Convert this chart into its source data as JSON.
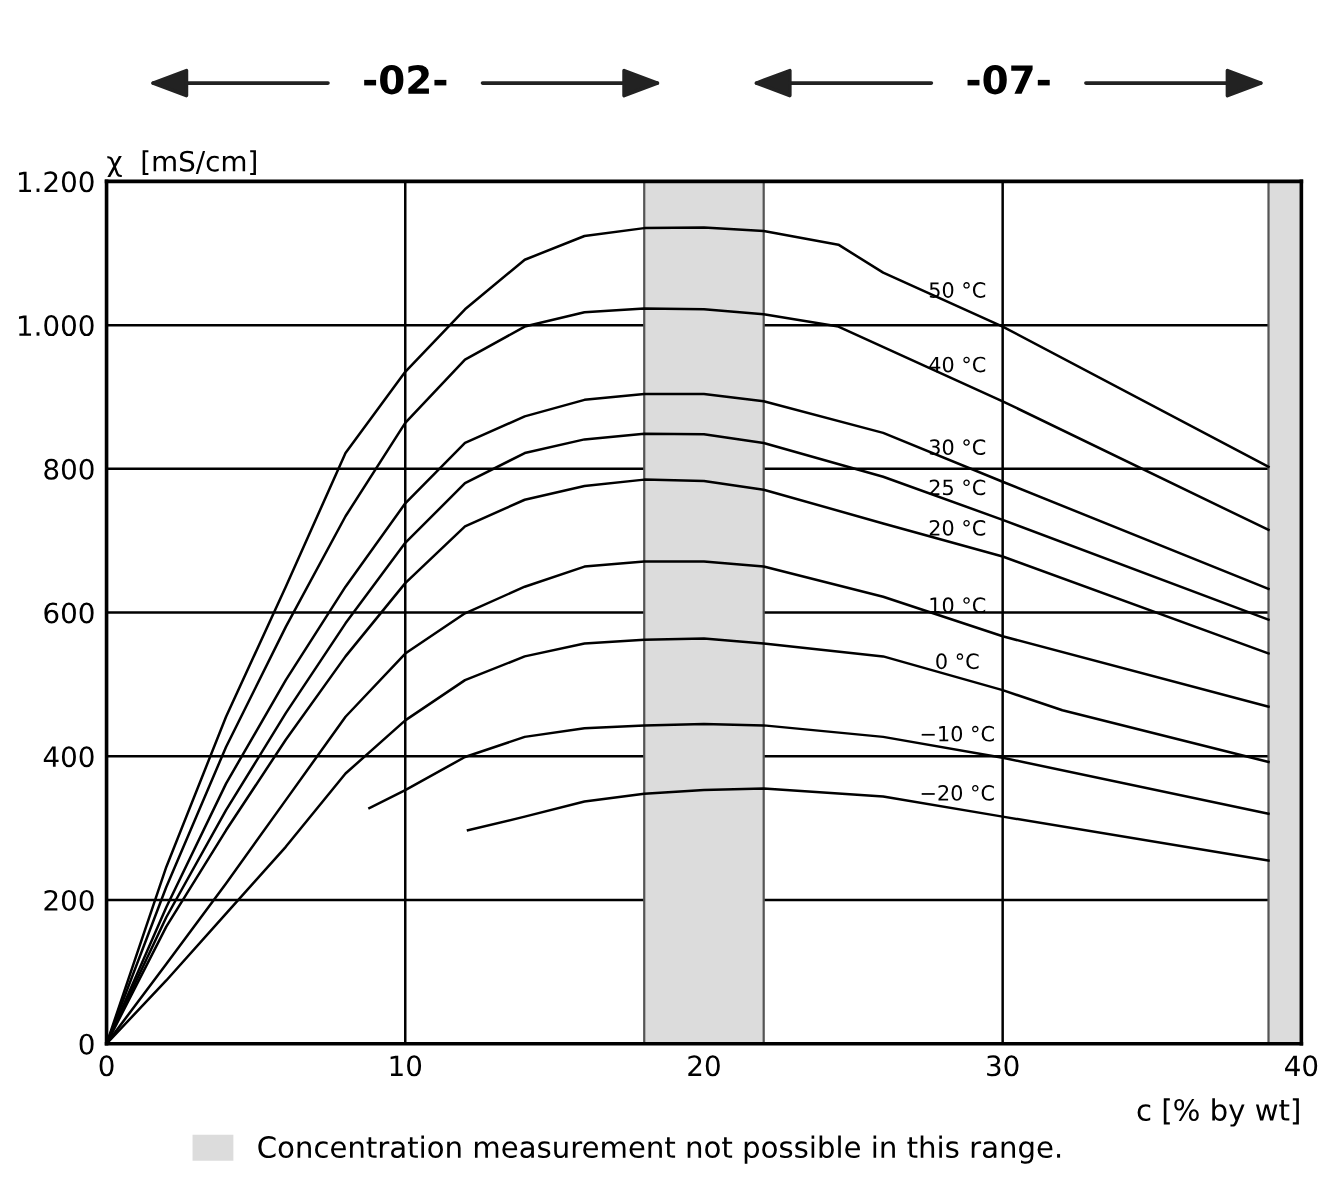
{
  "chart_data": {
    "type": "line",
    "xlabel": "c [% by wt]",
    "ylabel": "χ  [mS/cm]",
    "annotations": [
      "-02-",
      "-07-"
    ],
    "xlim": [
      0,
      40
    ],
    "ylim": [
      0,
      1200
    ],
    "xticks": [
      0,
      10,
      20,
      30,
      40
    ],
    "yticks": [
      0,
      200,
      400,
      600,
      800,
      {
        "value": 1000,
        "label": "1.000"
      },
      {
        "value": 1200,
        "label": "1.200"
      }
    ],
    "grid": true,
    "legend": "bottom left",
    "marker": "none",
    "line_style": "solid",
    "bands": [
      {
        "axis": "x",
        "from": 18,
        "to": 22,
        "label": "Concentration measurement not possible in this range.",
        "color": "#dcdcdc"
      },
      {
        "axis": "x",
        "from": 38.9,
        "to": 40,
        "color": "#dcdcdc"
      }
    ],
    "series": [
      {
        "name": "50 °C",
        "color": "#000000",
        "x": [
          0,
          2,
          4,
          6,
          8,
          10,
          12,
          14,
          16,
          18,
          20,
          22,
          24.5,
          26,
          30,
          38.9
        ],
        "values": [
          0,
          246,
          455,
          636,
          822,
          935,
          1022,
          1091,
          1124,
          1135,
          1136,
          1131,
          1112,
          1073,
          998,
          803
        ]
      },
      {
        "name": "40 °C",
        "color": "#000000",
        "x": [
          0,
          2,
          4,
          6,
          8,
          10,
          12,
          14,
          16,
          18,
          20,
          22,
          24.5,
          30,
          38.9
        ],
        "values": [
          0,
          218,
          413,
          580,
          734,
          864,
          952,
          998,
          1018,
          1023,
          1022,
          1015,
          998,
          894,
          715
        ]
      },
      {
        "name": "30 °C",
        "color": "#000000",
        "x": [
          0,
          2,
          4,
          6,
          8,
          10,
          12,
          14,
          16,
          18,
          20,
          22,
          26,
          30,
          38.9
        ],
        "values": [
          0,
          190,
          362,
          506,
          636,
          752,
          836,
          873,
          896,
          904,
          904,
          894,
          850,
          782,
          633
        ]
      },
      {
        "name": "25 °C",
        "color": "#000000",
        "x": [
          0,
          2,
          4,
          6,
          8,
          10,
          12,
          14,
          16,
          18,
          20,
          22,
          26,
          30,
          38.9
        ],
        "values": [
          0,
          176,
          325,
          460,
          585,
          697,
          780,
          822,
          841,
          849,
          848,
          836,
          789,
          729,
          590
        ]
      },
      {
        "name": "20 °C",
        "color": "#000000",
        "x": [
          0,
          2,
          4,
          6,
          8,
          10,
          12,
          14,
          16,
          18,
          20,
          22,
          26,
          30,
          38.9
        ],
        "values": [
          0,
          163,
          297,
          423,
          539,
          641,
          720,
          757,
          776,
          785,
          783,
          771,
          724,
          678,
          543
        ]
      },
      {
        "name": "10 °C",
        "color": "#000000",
        "x": [
          0,
          2,
          4,
          6,
          8,
          10,
          12,
          14,
          16,
          18,
          20,
          22,
          26,
          30,
          38.9
        ],
        "values": [
          0,
          111,
          223,
          339,
          455,
          543,
          599,
          636,
          664,
          671,
          671,
          664,
          622,
          567,
          469
        ]
      },
      {
        "name": "0 °C",
        "color": "#000000",
        "x": [
          0,
          2,
          4,
          6,
          8,
          10,
          12,
          14,
          16,
          18,
          20,
          22,
          26,
          30,
          32,
          38.9
        ],
        "values": [
          0,
          88,
          181,
          274,
          376,
          450,
          506,
          539,
          557,
          562,
          564,
          557,
          539,
          492,
          464,
          392
        ]
      },
      {
        "name": "−10 °C",
        "color": "#000000",
        "x": [
          8.8,
          10,
          12,
          14,
          16,
          18,
          20,
          22,
          26,
          30,
          38.9
        ],
        "values": [
          328,
          353,
          399,
          427,
          439,
          443,
          445,
          443,
          427,
          398,
          320
        ]
      },
      {
        "name": "−20 °C",
        "color": "#000000",
        "x": [
          12.1,
          14,
          16,
          18,
          20,
          22,
          26,
          30,
          38.9
        ],
        "values": [
          297,
          316,
          337,
          348,
          353,
          355,
          344,
          316,
          255
        ]
      }
    ]
  }
}
